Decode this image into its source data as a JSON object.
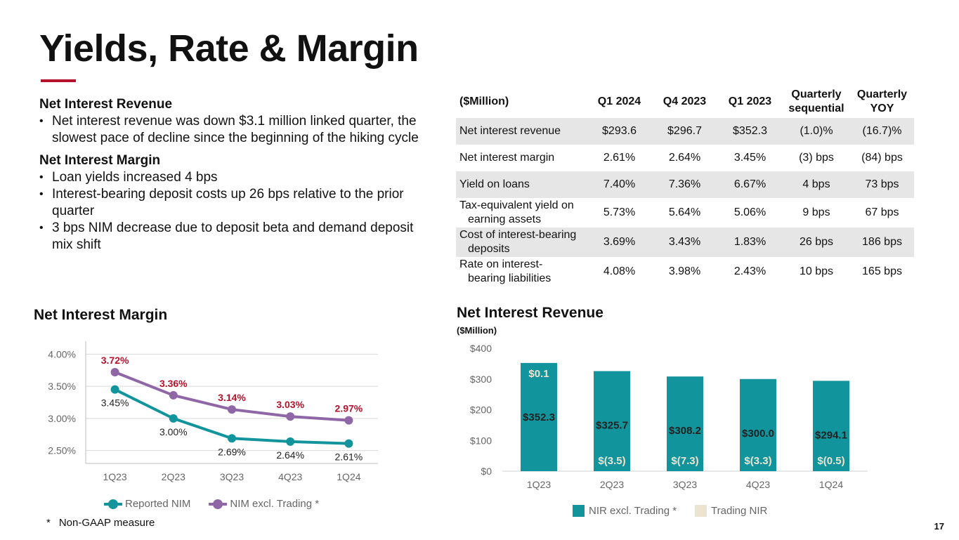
{
  "title": "Yields, Rate & Margin",
  "colors": {
    "accent": "#b5122b",
    "teal": "#12949c",
    "purple": "#8f67a6",
    "beige": "#ece3d0",
    "grid": "#d9d9d9"
  },
  "summary": {
    "sections": [
      {
        "heading": "Net Interest Revenue",
        "bullets": [
          "Net interest revenue was down $3.1 million linked quarter, the slowest pace of decline since the beginning of the hiking cycle"
        ]
      },
      {
        "heading": "Net Interest Margin",
        "bullets": [
          "Loan yields increased 4 bps",
          "Interest-bearing deposit costs up 26 bps relative to the prior quarter",
          "3 bps NIM decrease due to deposit beta and demand deposit mix shift"
        ]
      }
    ]
  },
  "table": {
    "headers": [
      "($Million)",
      "Q1 2024",
      "Q4 2023",
      "Q1 2023",
      "Quarterly sequential",
      "Quarterly YOY"
    ],
    "rows": [
      {
        "label": "Net interest revenue",
        "label2": "",
        "values": [
          "$293.6",
          "$296.7",
          "$352.3",
          "(1.0)%",
          "(16.7)%"
        ]
      },
      {
        "label": "Net interest margin",
        "label2": "",
        "values": [
          "2.61%",
          "2.64%",
          "3.45%",
          "(3) bps",
          "(84) bps"
        ]
      },
      {
        "label": "Yield on loans",
        "label2": "",
        "values": [
          "7.40%",
          "7.36%",
          "6.67%",
          "4 bps",
          "73 bps"
        ]
      },
      {
        "label": "Tax-equivalent yield on",
        "label2": "earning assets",
        "values": [
          "5.73%",
          "5.64%",
          "5.06%",
          "9 bps",
          "67 bps"
        ]
      },
      {
        "label": "Cost of interest-bearing",
        "label2": "deposits",
        "values": [
          "3.69%",
          "3.43%",
          "1.83%",
          "26 bps",
          "186 bps"
        ]
      },
      {
        "label": "Rate on interest-",
        "label2": "bearing liabilities",
        "values": [
          "4.08%",
          "3.98%",
          "2.43%",
          "10 bps",
          "165 bps"
        ]
      }
    ]
  },
  "nim_title": "Net Interest Margin",
  "nir_title": "Net Interest Revenue",
  "nir_unit": "($Million)",
  "chart_data": [
    {
      "type": "line",
      "title": "Net Interest Margin",
      "categories": [
        "1Q23",
        "2Q23",
        "3Q23",
        "4Q23",
        "1Q24"
      ],
      "yticks": [
        "2.50%",
        "3.00%",
        "3.50%",
        "4.00%"
      ],
      "ylim": [
        2.3,
        4.2
      ],
      "series": [
        {
          "name": "Reported NIM",
          "values": [
            3.45,
            3.0,
            2.69,
            2.64,
            2.61
          ],
          "labels": [
            "3.45%",
            "3.00%",
            "2.69%",
            "2.64%",
            "2.61%"
          ]
        },
        {
          "name": "NIM excl. Trading *",
          "values": [
            3.72,
            3.36,
            3.14,
            3.03,
            2.97
          ],
          "labels": [
            "3.72%",
            "3.36%",
            "3.14%",
            "3.03%",
            "2.97%"
          ]
        }
      ],
      "legend": "bottom"
    },
    {
      "type": "bar",
      "title": "Net Interest Revenue",
      "ylabel": "($Million)",
      "categories": [
        "1Q23",
        "2Q23",
        "3Q23",
        "4Q23",
        "1Q24"
      ],
      "yticks": [
        "$0",
        "$100",
        "$200",
        "$300",
        "$400"
      ],
      "ylim": [
        0,
        400
      ],
      "series": [
        {
          "name": "NIR excl. Trading *",
          "values": [
            352.3,
            325.7,
            308.2,
            300.0,
            294.1
          ],
          "labels": [
            "$352.3",
            "$325.7",
            "$308.2",
            "$300.0",
            "$294.1"
          ]
        },
        {
          "name": "Trading NIR",
          "values": [
            0.1,
            -3.5,
            -7.3,
            -3.3,
            -0.5
          ],
          "labels": [
            "$0.1",
            "$(3.5)",
            "$(7.3)",
            "$(3.3)",
            "$(0.5)"
          ]
        }
      ],
      "legend": "bottom"
    }
  ],
  "footnote": {
    "star": "*",
    "text": "Non-GAAP measure"
  },
  "page_number": "17"
}
